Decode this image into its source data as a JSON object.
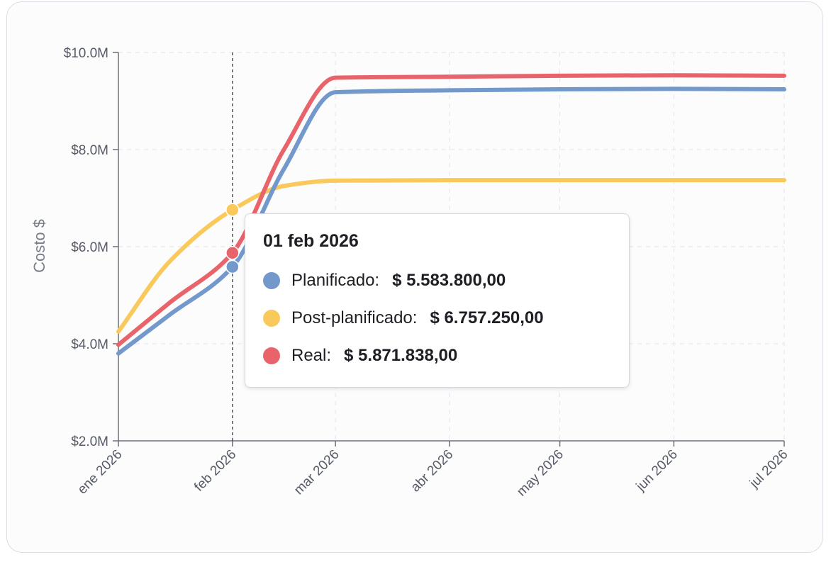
{
  "chart_data": {
    "type": "line",
    "ylabel": "Costo $",
    "ylim": [
      2000000,
      10000000
    ],
    "y_ticks": [
      {
        "value": 2000000,
        "label": "$2.0M"
      },
      {
        "value": 4000000,
        "label": "$4.0M"
      },
      {
        "value": 6000000,
        "label": "$6.0M"
      },
      {
        "value": 8000000,
        "label": "$8.0M"
      },
      {
        "value": 10000000,
        "label": "$10.0M"
      }
    ],
    "x_ticks": [
      "ene 2026",
      "feb 2026",
      "mar 2026",
      "abr 2026",
      "may 2026",
      "jun 2026",
      "jul 2026"
    ],
    "grid": true,
    "series": [
      {
        "name": "Planificado",
        "color": "#7399cc",
        "x": [
          "2026-01-01",
          "2026-01-15",
          "2026-02-01",
          "2026-02-15",
          "2026-03-01",
          "2026-04-01",
          "2026-05-01",
          "2026-06-01",
          "2026-07-01"
        ],
        "y": [
          3800000,
          4600000,
          5583800,
          7600000,
          9180000,
          9220000,
          9240000,
          9250000,
          9240000
        ]
      },
      {
        "name": "Post-planificado",
        "color": "#f9c95c",
        "x": [
          "2026-01-01",
          "2026-01-15",
          "2026-02-01",
          "2026-02-15",
          "2026-03-01",
          "2026-04-01",
          "2026-05-01",
          "2026-06-01",
          "2026-07-01"
        ],
        "y": [
          4250000,
          5700000,
          6757250,
          7250000,
          7360000,
          7370000,
          7370000,
          7370000,
          7370000
        ]
      },
      {
        "name": "Real",
        "color": "#e8646a",
        "x": [
          "2026-01-01",
          "2026-01-15",
          "2026-02-01",
          "2026-02-15",
          "2026-03-01",
          "2026-04-01",
          "2026-05-01",
          "2026-06-01",
          "2026-07-01"
        ],
        "y": [
          3980000,
          4850000,
          5871838,
          8000000,
          9480000,
          9500000,
          9520000,
          9530000,
          9520000
        ]
      }
    ],
    "hover": {
      "x": "2026-02-01",
      "title": "01 feb 2026",
      "items": [
        {
          "name": "Planificado:",
          "value": "$ 5.583.800,00",
          "color": "#7399cc"
        },
        {
          "name": "Post-planificado:",
          "value": "$ 6.757.250,00",
          "color": "#f9c95c"
        },
        {
          "name": "Real:",
          "value": "$ 5.871.838,00",
          "color": "#e8646a"
        }
      ]
    }
  }
}
